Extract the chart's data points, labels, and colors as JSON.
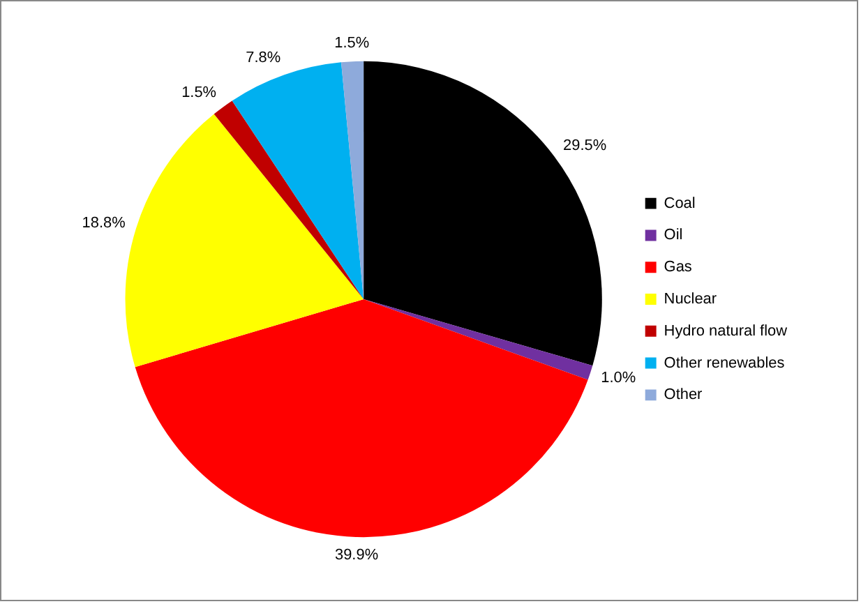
{
  "chart_data": {
    "type": "pie",
    "categories": [
      "Coal",
      "Oil",
      "Gas",
      "Nuclear",
      "Hydro natural flow",
      "Other renewables",
      "Other"
    ],
    "values": [
      29.5,
      1.0,
      39.9,
      18.8,
      1.5,
      7.8,
      1.5
    ],
    "colors": [
      "#000000",
      "#7030a0",
      "#ff0000",
      "#ffff00",
      "#c00000",
      "#00b0f0",
      "#8eaadb"
    ],
    "value_labels": [
      "29.5%",
      "1.0%",
      "39.9%",
      "18.8%",
      "1.5%",
      "7.8%",
      "1.5%"
    ],
    "legend": "right"
  }
}
